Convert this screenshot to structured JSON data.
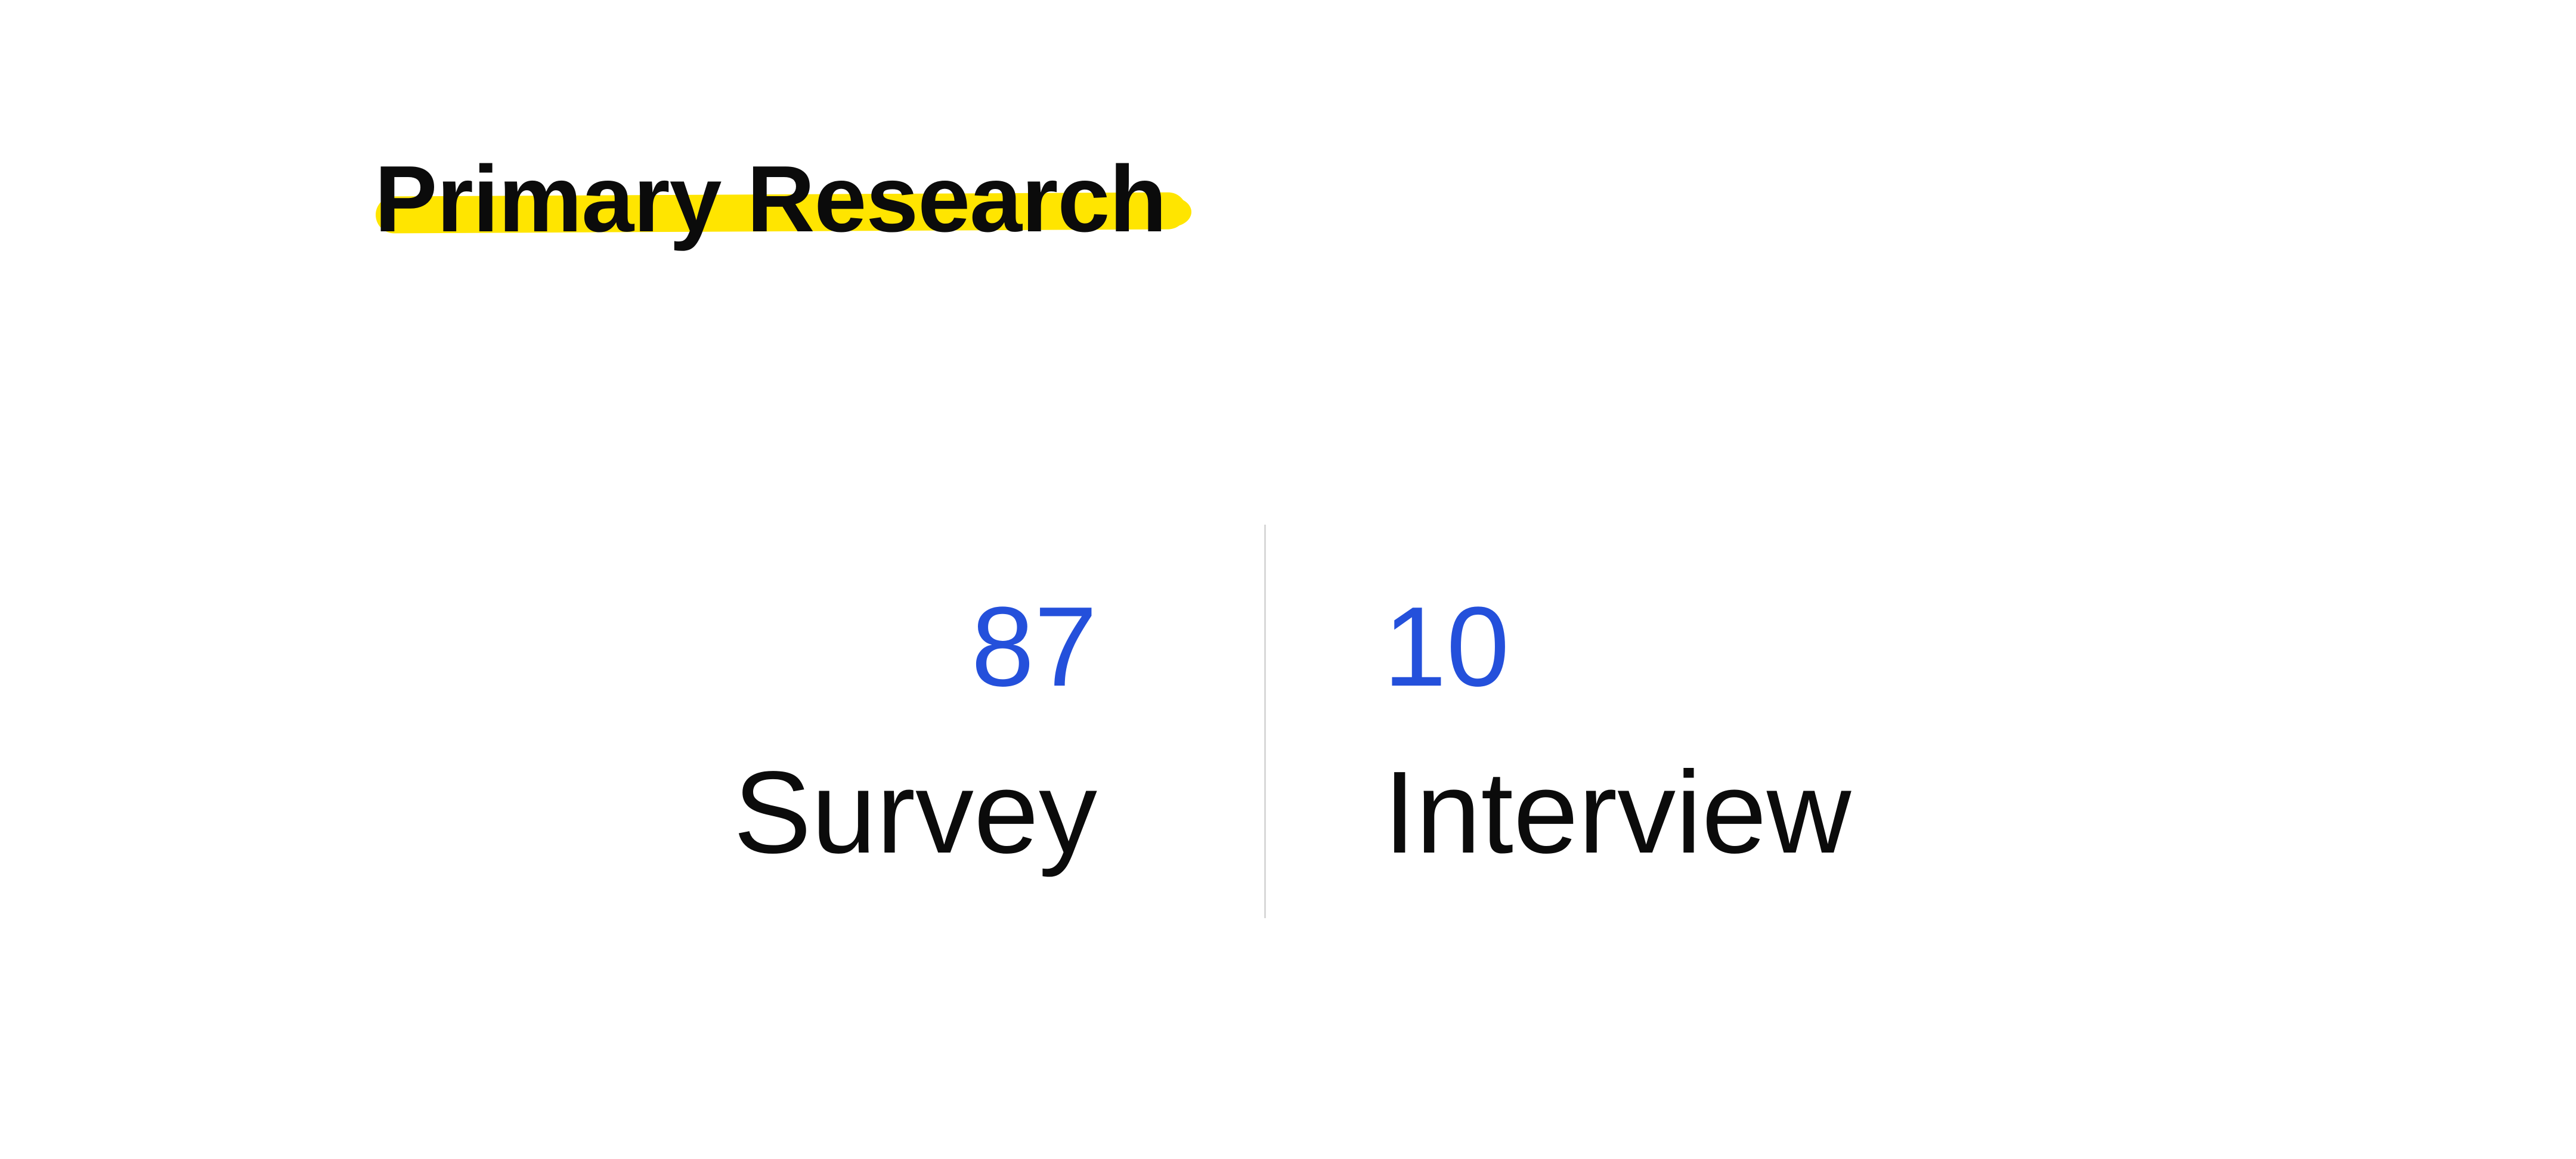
{
  "page": {
    "title": "Primary Research"
  },
  "stats": [
    {
      "value": "87",
      "label": "Survey"
    },
    {
      "value": "10",
      "label": "Interview"
    }
  ],
  "colors": {
    "background": "#FFFFFF",
    "highlight": "#FFE500",
    "accent": "#2450DB",
    "text": "#0B0B0B",
    "divider": "#D8D8D8"
  }
}
